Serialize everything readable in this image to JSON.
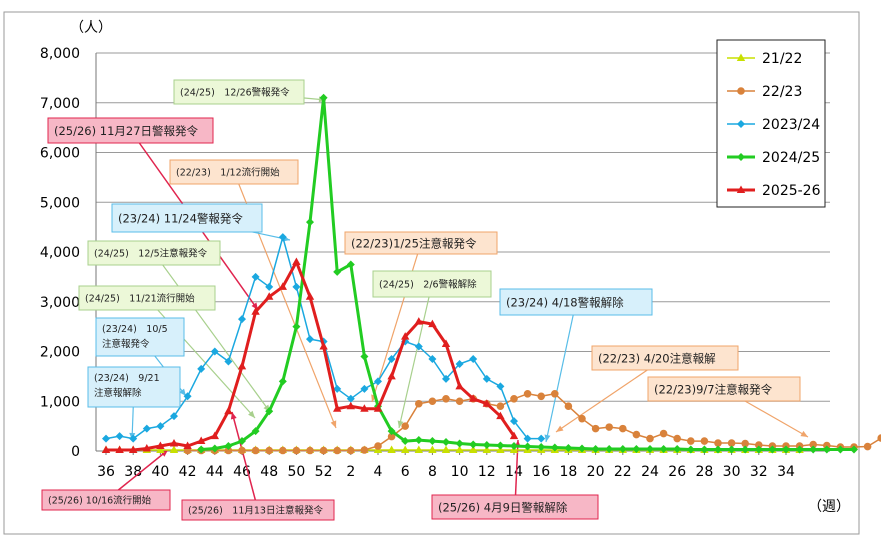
{
  "chart_data": {
    "type": "line",
    "y_unit": "（人）",
    "x_unit": "（週）",
    "ylim": [
      0,
      8000
    ],
    "y_ticks": [
      "0",
      "1,000",
      "2,000",
      "3,000",
      "4,000",
      "5,000",
      "6,000",
      "7,000",
      "8,000"
    ],
    "x_tick_labels": [
      "36",
      "38",
      "40",
      "42",
      "44",
      "46",
      "48",
      "50",
      "52",
      "2",
      "4",
      "6",
      "8",
      "10",
      "12",
      "14",
      "16",
      "18",
      "20",
      "22",
      "24",
      "26",
      "28",
      "30",
      "32",
      "34"
    ],
    "series": [
      {
        "name": "21/22",
        "color": "#c8e000",
        "marker": "triangle",
        "values": [
          20,
          20,
          20,
          20,
          20,
          20,
          20,
          20,
          20,
          20,
          20,
          20,
          20,
          20,
          20,
          20,
          20,
          20,
          20,
          20,
          20,
          20,
          20,
          20,
          20,
          20,
          20,
          20,
          20,
          20,
          20,
          20,
          20,
          20,
          20,
          20,
          20,
          20,
          20,
          20,
          20,
          20,
          20,
          20,
          20,
          20,
          20,
          20,
          20,
          20,
          20,
          20
        ]
      },
      {
        "name": "22/23",
        "color": "#d9823b",
        "marker": "circle",
        "values": [
          null,
          null,
          null,
          null,
          null,
          null,
          10,
          10,
          10,
          10,
          10,
          10,
          10,
          10,
          10,
          10,
          10,
          10,
          10,
          20,
          100,
          290,
          500,
          950,
          1000,
          1050,
          1000,
          1050,
          950,
          900,
          1050,
          1150,
          1100,
          1150,
          900,
          650,
          450,
          480,
          450,
          330,
          250,
          350,
          250,
          200,
          200,
          160,
          160,
          150,
          120,
          100,
          100,
          100,
          130,
          110,
          80,
          80,
          90,
          260
        ]
      },
      {
        "name": "2023/24",
        "color": "#1aa8e0",
        "marker": "diamond",
        "values": [
          250,
          300,
          250,
          450,
          500,
          700,
          1100,
          1650,
          2000,
          1800,
          2650,
          3500,
          3300,
          4300,
          3300,
          2250,
          2200,
          1250,
          1050,
          1250,
          1400,
          1850,
          2200,
          2100,
          1850,
          1450,
          1750,
          1850,
          1450,
          1300,
          600,
          250,
          250
        ]
      },
      {
        "name": "2024/25",
        "color": "#22cc22",
        "marker": "diamond",
        "values": [
          null,
          null,
          null,
          null,
          null,
          null,
          null,
          30,
          50,
          100,
          200,
          400,
          800,
          1400,
          2500,
          4600,
          7100,
          3600,
          3750,
          1900,
          900,
          400,
          200,
          220,
          200,
          180,
          150,
          130,
          120,
          110,
          100,
          90,
          80,
          70,
          60,
          50,
          40,
          40,
          40,
          40,
          40,
          40,
          40,
          30,
          30,
          30,
          30,
          30,
          30,
          30,
          30,
          30,
          30,
          30,
          30,
          30
        ]
      },
      {
        "name": "2025-26",
        "color": "#e01e1e",
        "marker": "triangle",
        "values": [
          20,
          20,
          20,
          50,
          100,
          150,
          100,
          200,
          300,
          800,
          1700,
          2800,
          3100,
          3300,
          3800,
          3100,
          2100,
          850,
          900,
          850,
          850,
          1500,
          2300,
          2600,
          2550,
          2150,
          1300,
          1050,
          950,
          700,
          300
        ]
      }
    ],
    "annotations": [
      {
        "text": "(24/25)　12/26警報発令",
        "style": "green",
        "size": "s"
      },
      {
        "text": "(25/26)  11月27日警報発令",
        "style": "red",
        "size": "l"
      },
      {
        "text": "(22/23)　1/12流行開始",
        "style": "orange",
        "size": "s"
      },
      {
        "text": "(23/24)  11/24警報発令",
        "style": "blue",
        "size": "l"
      },
      {
        "text": "(22/23)1/25注意報発令",
        "style": "orange",
        "size": "l"
      },
      {
        "text": "(24/25)　12/5注意報発令",
        "style": "green",
        "size": "s"
      },
      {
        "text": "(24/25)　2/6警報解除",
        "style": "green",
        "size": "s"
      },
      {
        "text": "(24/25)　11/21流行開始",
        "style": "green",
        "size": "s"
      },
      {
        "text": "(23/24)  4/18警報解除",
        "style": "blue",
        "size": "l"
      },
      {
        "text": "(23/24)　10/5\n注意報発令",
        "style": "blue",
        "size": "s"
      },
      {
        "text": "(22/23)  4/20注意報解",
        "style": "orange",
        "size": "l"
      },
      {
        "text": "(23/24)　9/21\n注意報解除",
        "style": "blue",
        "size": "s"
      },
      {
        "text": "(22/23)9/7注意報発令",
        "style": "orange",
        "size": "l"
      },
      {
        "text": "(25/26)  10/16流行開始",
        "style": "red",
        "size": "s"
      },
      {
        "text": "(25/26)　11月13日注意報発令",
        "style": "red",
        "size": "s"
      },
      {
        "text": "(25/26)  4月9日警報解除",
        "style": "red",
        "size": "l"
      }
    ],
    "legend": [
      "21/22",
      "22/23",
      "2023/24",
      "2024/25",
      "2025-26"
    ],
    "legend_position": "top-right"
  }
}
